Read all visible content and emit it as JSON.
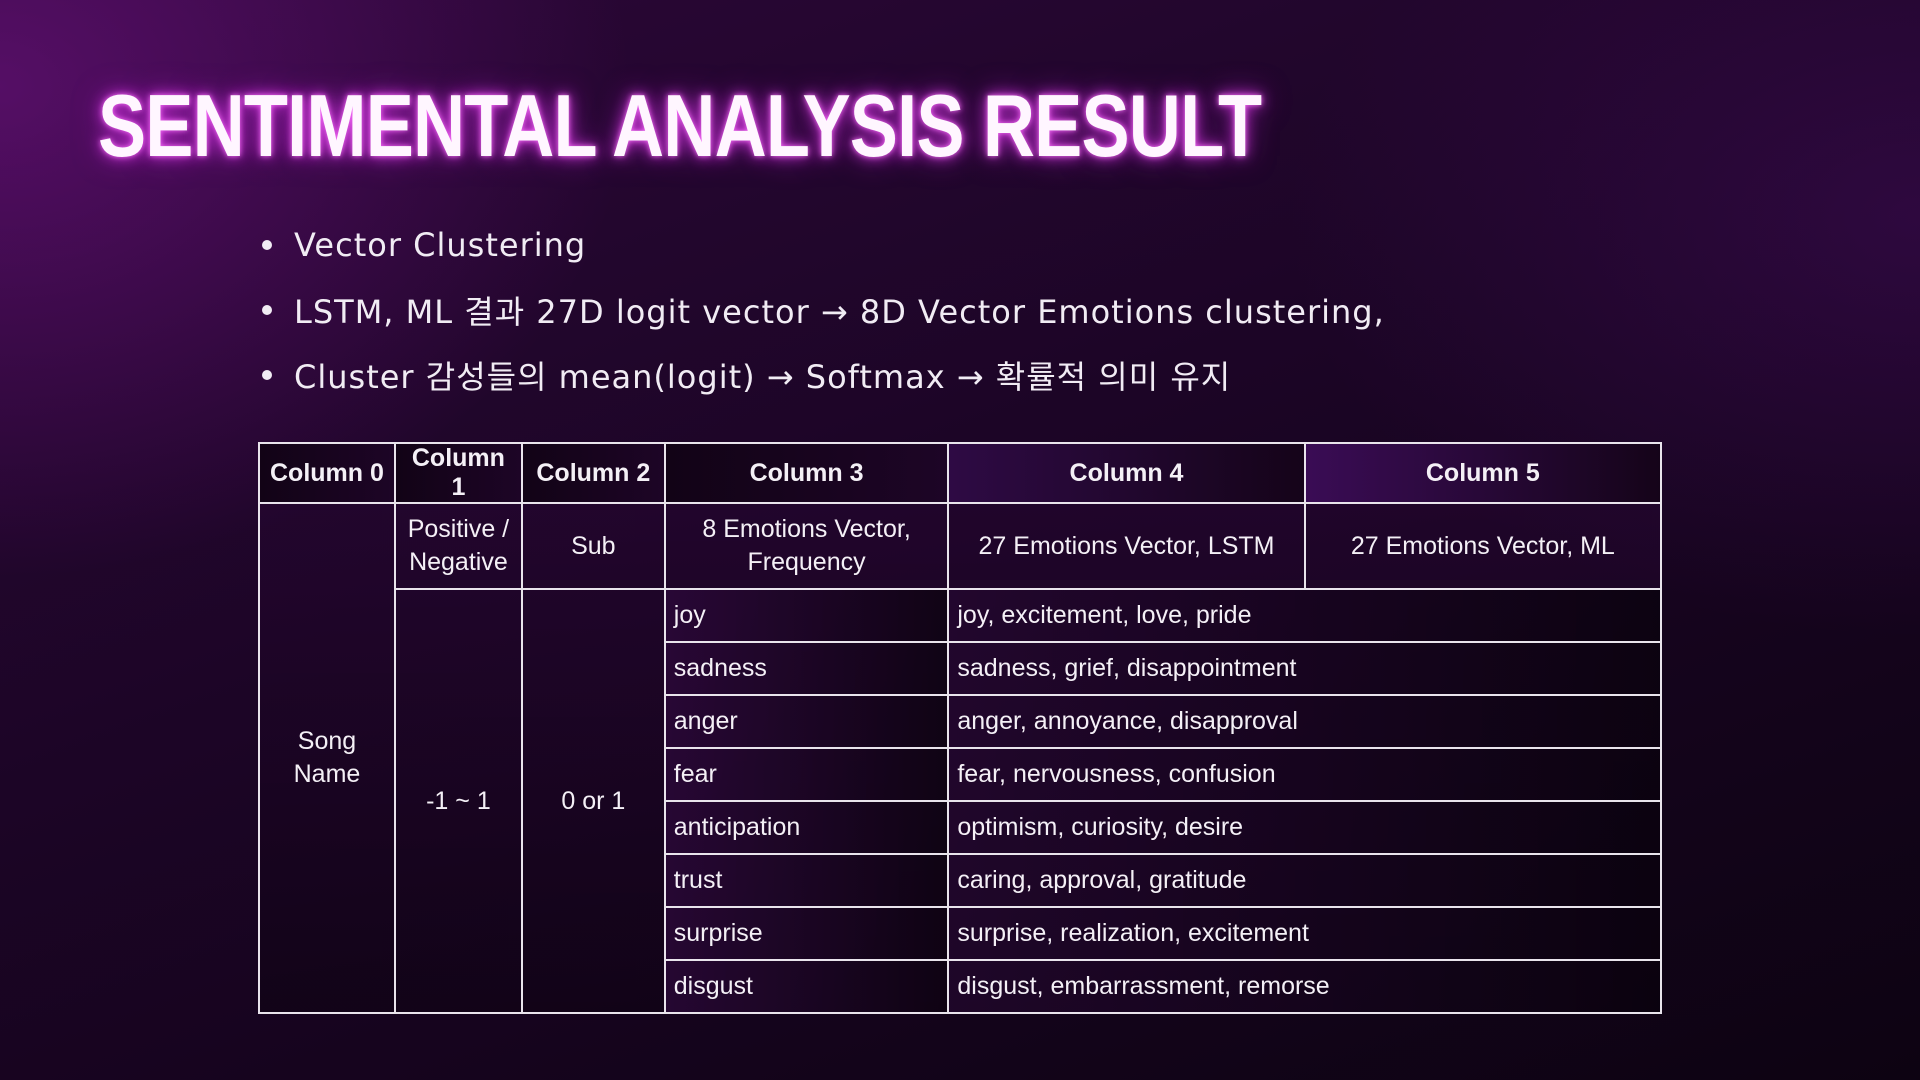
{
  "title": "SENTIMENTAL ANALYSIS RESULT",
  "bullets": [
    "Vector Clustering",
    "LSTM, ML 결과 27D logit vector →  8D Vector Emotions  clustering,",
    "Cluster 감성들의 mean(logit) → Softmax → 확률적 의미 유지"
  ],
  "table": {
    "headers": [
      "Column  0",
      "Column 1",
      "Column 2",
      "Column 3",
      "Column 4",
      "Column 5"
    ],
    "description_row": {
      "col1_line1": "Positive /",
      "col1_line2": "Negative",
      "col2": "Sub",
      "col3_line1": "8 Emotions Vector,",
      "col3_line2": "Frequency",
      "col4": "27 Emotions Vector,  LSTM",
      "col5": "27 Emotions Vector,  ML"
    },
    "col0_line1": "Song",
    "col0_line2": "Name",
    "col1_range": "-1  ~ 1",
    "col2_value": "0 or 1",
    "emotions": [
      {
        "name": "joy",
        "members": "joy, excitement, love, pride"
      },
      {
        "name": "sadness",
        "members": "sadness, grief, disappointment"
      },
      {
        "name": "anger",
        "members": "anger, annoyance, disapproval"
      },
      {
        "name": "fear",
        "members": "fear, nervousness, confusion"
      },
      {
        "name": "anticipation",
        "members": "optimism, curiosity, desire"
      },
      {
        "name": "trust",
        "members": "caring, approval, gratitude"
      },
      {
        "name": "surprise",
        "members": "surprise, realization, excitement"
      },
      {
        "name": "disgust",
        "members": "disgust, embarrassment, remorse"
      }
    ]
  },
  "colors": {
    "title_glow": "#e03cf0",
    "background_top": "#2c0738",
    "background_bottom": "#0d0312",
    "table_border": "#e9e4ec"
  }
}
